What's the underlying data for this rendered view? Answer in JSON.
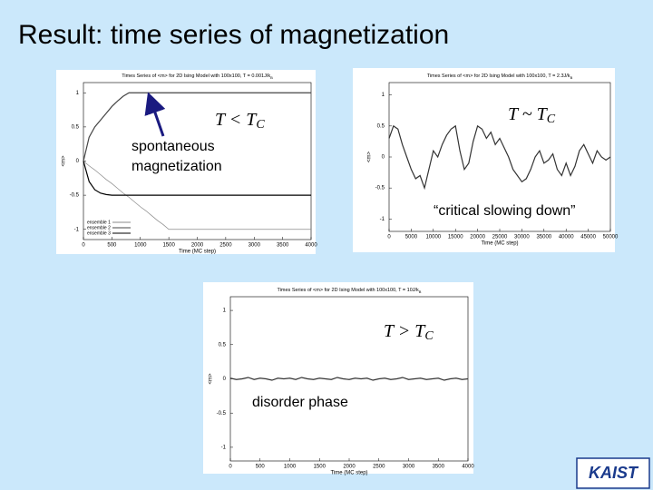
{
  "slide": {
    "title": "Result: time series of magnetization",
    "annotations": [
      {
        "text": "T < T",
        "sub": "C"
      },
      {
        "text": "T ~ T",
        "sub": "C"
      },
      {
        "text": "T > T",
        "sub": "C"
      },
      {
        "lines": [
          "spontaneous",
          "magnetization"
        ]
      },
      {
        "text": "“critical slowing down”"
      },
      {
        "text": "disorder phase"
      }
    ],
    "logo": "KAIST"
  },
  "chart_data": [
    {
      "type": "line",
      "title": "Times Series of <m> for 2D Ising Model with 100x100, T = 0.001J/k",
      "title_sub": "B",
      "xlabel": "Time (MC step)",
      "ylabel": "<m>",
      "x": [
        0,
        100,
        200,
        300,
        400,
        500,
        600,
        700,
        800,
        900,
        1000,
        1100,
        1200,
        1300,
        1400,
        1500,
        1600,
        1700,
        1800,
        1900,
        2000,
        2100,
        2200,
        2300,
        2400,
        2500,
        2600,
        2700,
        2800,
        2900,
        3000,
        3100,
        3200,
        3300,
        3400,
        3500,
        3600,
        3700,
        3800,
        3900,
        4000
      ],
      "series": [
        {
          "name": "ensemble 1",
          "color": "#8a8a8a",
          "values": [
            0,
            -0.07,
            -0.13,
            -0.2,
            -0.27,
            -0.33,
            -0.4,
            -0.47,
            -0.53,
            -0.6,
            -0.67,
            -0.73,
            -0.8,
            -0.87,
            -0.93,
            -1,
            -1,
            -1,
            -1,
            -1,
            -1,
            -1,
            -1,
            -1,
            -1,
            -1,
            -1,
            -1,
            -1,
            -1,
            -1,
            -1,
            -1,
            -1,
            -1,
            -1,
            -1,
            -1,
            -1,
            -1,
            -1
          ]
        },
        {
          "name": "ensemble 2",
          "color": "#444444",
          "values": [
            0,
            0.35,
            0.5,
            0.6,
            0.7,
            0.8,
            0.88,
            0.95,
            1,
            1,
            1,
            1,
            1,
            1,
            1,
            1,
            1,
            1,
            1,
            1,
            1,
            1,
            1,
            1,
            1,
            1,
            1,
            1,
            1,
            1,
            1,
            1,
            1,
            1,
            1,
            1,
            1,
            1,
            1,
            1,
            1
          ]
        },
        {
          "name": "ensemble 3",
          "color": "#000000",
          "values": [
            0,
            -0.3,
            -0.42,
            -0.47,
            -0.49,
            -0.5,
            -0.5,
            -0.5,
            -0.5,
            -0.5,
            -0.5,
            -0.5,
            -0.5,
            -0.5,
            -0.5,
            -0.5,
            -0.5,
            -0.5,
            -0.5,
            -0.5,
            -0.5,
            -0.5,
            -0.5,
            -0.5,
            -0.5,
            -0.5,
            -0.5,
            -0.5,
            -0.5,
            -0.5,
            -0.5,
            -0.5,
            -0.5,
            -0.5,
            -0.5,
            -0.5,
            -0.5,
            -0.5,
            -0.5,
            -0.5,
            -0.5
          ]
        }
      ],
      "xlim": [
        0,
        4000
      ],
      "xticks": [
        0,
        500,
        1000,
        1500,
        2000,
        2500,
        3000,
        3500,
        4000
      ],
      "ylim": [
        -1.15,
        1.15
      ],
      "yticks": [
        -1,
        -0.5,
        0,
        0.5,
        1
      ],
      "legend": "lower left"
    },
    {
      "type": "line",
      "title": "Times Series of <m> for 2D Ising Model with 100x100, T = 2.3J/k",
      "title_sub": "B",
      "xlabel": "Time (MC step)",
      "ylabel": "<m>",
      "x": [
        0,
        1000,
        2000,
        3000,
        4000,
        5000,
        6000,
        7000,
        8000,
        9000,
        10000,
        11000,
        12000,
        13000,
        14000,
        15000,
        16000,
        17000,
        18000,
        19000,
        20000,
        21000,
        22000,
        23000,
        24000,
        25000,
        26000,
        27000,
        28000,
        29000,
        30000,
        31000,
        32000,
        33000,
        34000,
        35000,
        36000,
        37000,
        38000,
        39000,
        40000,
        41000,
        42000,
        43000,
        44000,
        45000,
        46000,
        47000,
        48000,
        49000,
        50000
      ],
      "series": [
        {
          "name": "<m>",
          "color": "#333333",
          "values": [
            0.3,
            0.5,
            0.45,
            0.2,
            0.0,
            -0.2,
            -0.35,
            -0.3,
            -0.5,
            -0.2,
            0.1,
            0.0,
            0.2,
            0.35,
            0.45,
            0.5,
            0.1,
            -0.2,
            -0.1,
            0.25,
            0.5,
            0.45,
            0.3,
            0.4,
            0.2,
            0.3,
            0.15,
            0.0,
            -0.2,
            -0.3,
            -0.4,
            -0.35,
            -0.2,
            0.0,
            0.1,
            -0.1,
            -0.05,
            0.05,
            -0.2,
            -0.3,
            -0.1,
            -0.3,
            -0.15,
            0.1,
            0.2,
            0.05,
            -0.1,
            0.1,
            0.0,
            -0.05,
            0.0
          ]
        }
      ],
      "xlim": [
        0,
        50000
      ],
      "xticks": [
        0,
        5000,
        10000,
        15000,
        20000,
        25000,
        30000,
        35000,
        40000,
        45000,
        50000
      ],
      "ylim": [
        -1.2,
        1.2
      ],
      "yticks": [
        -1,
        -0.5,
        0,
        0.5,
        1
      ]
    },
    {
      "type": "line",
      "title": "Times Series of <m> for 2D Ising Model with 100x100, T = 10J/k",
      "title_sub": "B",
      "xlabel": "Time (MC step)",
      "ylabel": "<m>",
      "x": [
        0,
        100,
        200,
        300,
        400,
        500,
        600,
        700,
        800,
        900,
        1000,
        1100,
        1200,
        1300,
        1400,
        1500,
        1600,
        1700,
        1800,
        1900,
        2000,
        2100,
        2200,
        2300,
        2400,
        2500,
        2600,
        2700,
        2800,
        2900,
        3000,
        3100,
        3200,
        3300,
        3400,
        3500,
        3600,
        3700,
        3800,
        3900,
        4000
      ],
      "series": [
        {
          "name": "<m>",
          "color": "#333333",
          "values": [
            0.01,
            -0.01,
            0.0,
            0.02,
            -0.01,
            0.01,
            0.0,
            -0.02,
            0.01,
            0.0,
            0.01,
            -0.01,
            0.02,
            0.0,
            -0.01,
            0.01,
            0.0,
            -0.01,
            0.02,
            0.0,
            -0.01,
            0.01,
            0.0,
            0.01,
            -0.02,
            0.0,
            0.01,
            -0.01,
            0.0,
            0.02,
            -0.01,
            0.0,
            0.01,
            -0.01,
            0.0,
            0.01,
            -0.02,
            0.0,
            0.01,
            -0.01,
            0.0
          ]
        }
      ],
      "xlim": [
        0,
        4000
      ],
      "xticks": [
        0,
        500,
        1000,
        1500,
        2000,
        2500,
        3000,
        3500,
        4000
      ],
      "ylim": [
        -1.2,
        1.2
      ],
      "yticks": [
        -1,
        -0.5,
        0,
        0.5,
        1
      ]
    }
  ]
}
